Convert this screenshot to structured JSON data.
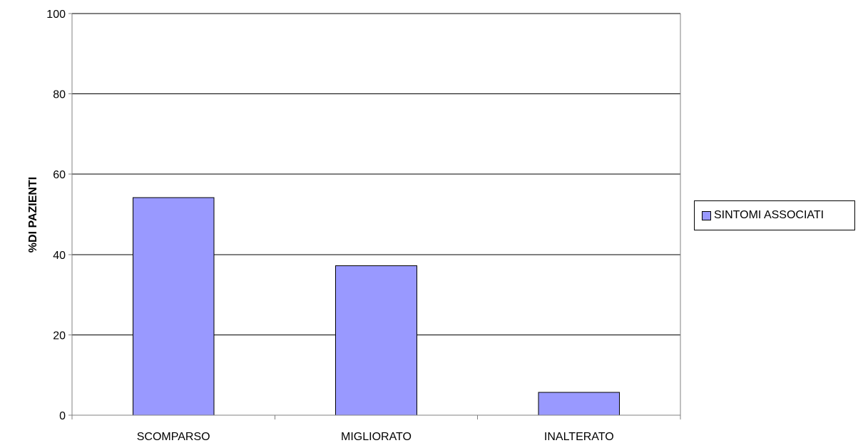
{
  "chart_data": {
    "type": "bar",
    "categories": [
      "SCOMPARSO",
      "MIGLIORATO",
      "INALTERATO"
    ],
    "series": [
      {
        "name": "SINTOMI ASSOCIATI",
        "values": [
          54.2,
          37.2,
          5.7
        ]
      }
    ],
    "title": "",
    "xlabel": "",
    "ylabel": "%DI PAZIENTI",
    "ylim": [
      0,
      100
    ],
    "yticks": [
      0,
      20,
      40,
      60,
      80,
      100
    ],
    "grid": true,
    "legend_position": "right",
    "colors": {
      "bar_fill": "#9999ff",
      "bar_stroke": "#000000",
      "grid": "#000000",
      "axis": "#808080"
    }
  }
}
